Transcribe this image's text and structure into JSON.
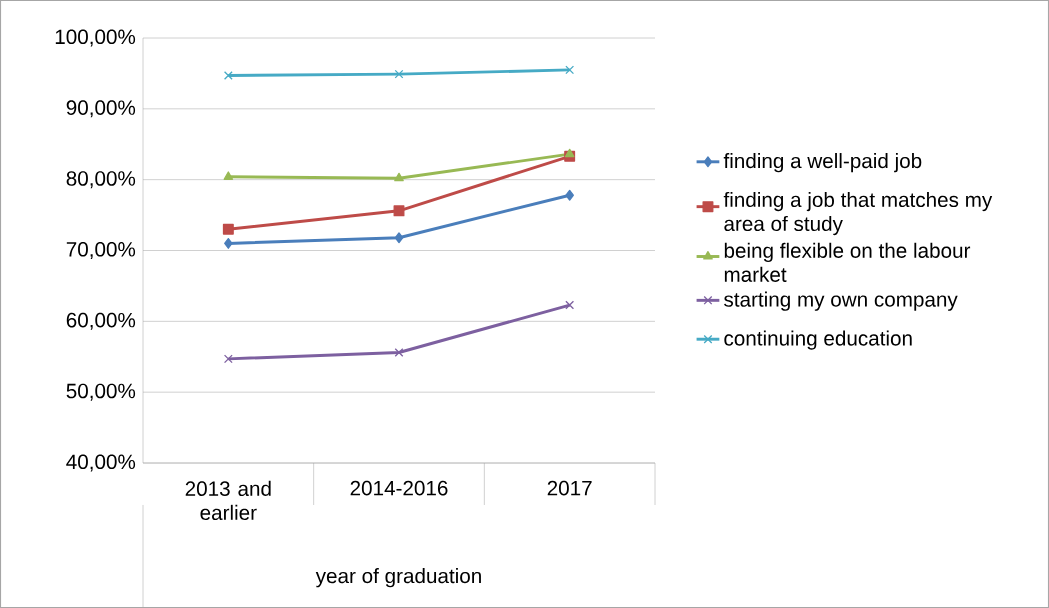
{
  "chart_data": {
    "type": "line",
    "xlabel": "year of graduation",
    "categories": [
      "2013 and earlier",
      "2014-2016",
      "2017"
    ],
    "series": [
      {
        "name": "finding a well-paid job",
        "color": "#4a7ebb",
        "marker": "diamond",
        "values": [
          71.0,
          71.8,
          77.8
        ]
      },
      {
        "name": "finding a job that matches my area of study",
        "color": "#be4b48",
        "marker": "square",
        "values": [
          73.0,
          75.6,
          83.3
        ]
      },
      {
        "name": "being flexible on the labour market",
        "color": "#98b954",
        "marker": "triangle",
        "values": [
          80.4,
          80.2,
          83.6
        ]
      },
      {
        "name": "starting my own company",
        "color": "#7d60a0",
        "marker": "cross",
        "values": [
          54.7,
          55.6,
          62.3
        ]
      },
      {
        "name": "continuing education",
        "color": "#46aac5",
        "marker": "cross",
        "values": [
          94.7,
          94.9,
          95.5
        ]
      }
    ],
    "ylim": [
      40,
      100
    ],
    "yticks": [
      {
        "value": 40,
        "label": "40,00%"
      },
      {
        "value": 50,
        "label": "50,00%"
      },
      {
        "value": 60,
        "label": "60,00%"
      },
      {
        "value": 70,
        "label": "70,00%"
      },
      {
        "value": 80,
        "label": "80,00%"
      },
      {
        "value": 90,
        "label": "90,00%"
      },
      {
        "value": 100,
        "label": "100,00%"
      }
    ],
    "grid": "y",
    "legend": "right"
  }
}
